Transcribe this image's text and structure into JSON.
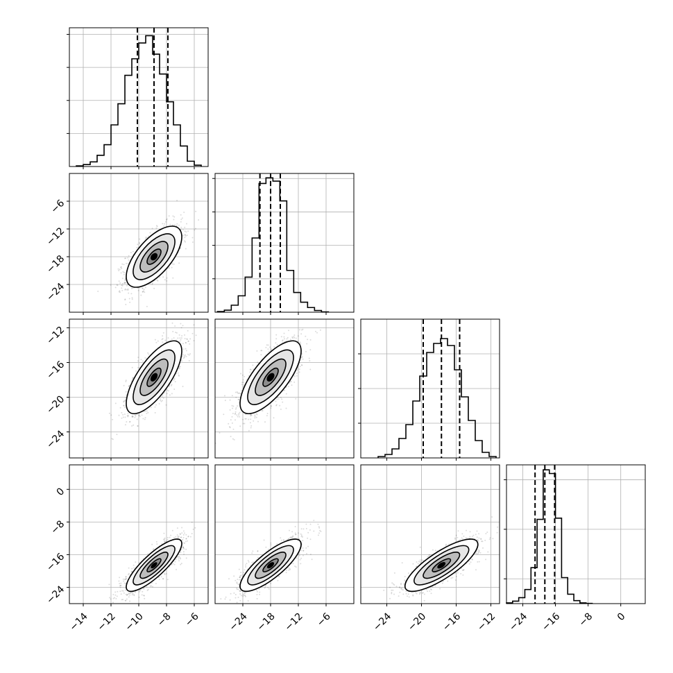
{
  "chart_data": {
    "type": "corner",
    "grid": true,
    "n_params": 4,
    "params": [
      {
        "range": [
          -15,
          -5
        ],
        "ticks": [
          -14,
          -12,
          -10,
          -8,
          -6
        ],
        "tick_labels": [
          "−14",
          "−12",
          "−10",
          "−8",
          "−6"
        ],
        "quantiles": [
          -10.1,
          -8.9,
          -7.9
        ],
        "hist": {
          "edges": [
            -14.5,
            -14.0,
            -13.5,
            -13.0,
            -12.5,
            -12.0,
            -11.5,
            -11.0,
            -10.5,
            -10.0,
            -9.5,
            -9.0,
            -8.5,
            -8.0,
            -7.5,
            -7.0,
            -6.5,
            -6.0,
            -5.5
          ],
          "counts": [
            1,
            3,
            7,
            17,
            33,
            63,
            95,
            138,
            163,
            187,
            198,
            170,
            140,
            98,
            63,
            31,
            8,
            2
          ],
          "ymax": 210,
          "yticks": [
            50,
            100,
            150,
            200
          ]
        }
      },
      {
        "range": [
          -30,
          0
        ],
        "ticks": [
          -24,
          -18,
          -12,
          -6
        ],
        "tick_labels": [
          "−24",
          "−18",
          "−12",
          "−6"
        ],
        "quantiles": [
          -20.3,
          -18.0,
          -15.9
        ],
        "hist": {
          "edges": [
            -29.5,
            -28.0,
            -26.5,
            -25.0,
            -23.5,
            -22.0,
            -20.5,
            -19.0,
            -17.5,
            -16.0,
            -14.5,
            -13.0,
            -11.5,
            -10.0,
            -8.5,
            -7.0,
            -5.5
          ],
          "counts": [
            2,
            6,
            21,
            49,
            105,
            222,
            385,
            402,
            392,
            333,
            125,
            59,
            30,
            14,
            5,
            1
          ],
          "ymax": 415,
          "yticks": [
            100,
            200,
            300,
            400
          ]
        }
      },
      {
        "range": [
          -27,
          -11
        ],
        "ticks": [
          -24,
          -20,
          -16,
          -12
        ],
        "tick_labels": [
          "−24",
          "−20",
          "−16",
          "−12"
        ],
        "quantiles": [
          -19.8,
          -17.7,
          -15.6
        ],
        "hist": {
          "edges": [
            -25.0,
            -24.2,
            -23.4,
            -22.6,
            -21.8,
            -21.0,
            -20.2,
            -19.4,
            -18.6,
            -17.8,
            -17.0,
            -16.2,
            -15.4,
            -14.6,
            -13.8,
            -13.0,
            -12.2,
            -11.4
          ],
          "counts": [
            2,
            5,
            13,
            28,
            48,
            82,
            118,
            152,
            165,
            172,
            162,
            127,
            88,
            54,
            25,
            8,
            2
          ],
          "ymax": 200,
          "yticks": [
            50,
            100,
            150
          ]
        }
      },
      {
        "range": [
          -28,
          6
        ],
        "ticks": [
          -24,
          -16,
          -8,
          0
        ],
        "tick_labels": [
          "−24",
          "−16",
          "−8",
          "0"
        ],
        "quantiles": [
          -21.0,
          -18.6,
          -16.2
        ],
        "hist": {
          "edges": [
            -28.0,
            -26.5,
            -25.0,
            -23.5,
            -22.0,
            -20.5,
            -19.0,
            -17.5,
            -16.0,
            -14.5,
            -13.0,
            -11.5,
            -10.0,
            -8.5,
            -7.0
          ],
          "counts": [
            3,
            10,
            24,
            57,
            145,
            340,
            540,
            525,
            345,
            105,
            38,
            12,
            3,
            1
          ],
          "ymax": 560,
          "yticks": [
            100,
            300,
            500
          ]
        }
      }
    ],
    "pairs": [
      {
        "row": 1,
        "col": 0,
        "mx": -8.9,
        "my": -18.0,
        "sx": 1.0,
        "sy": 3.3,
        "rho": 0.65
      },
      {
        "row": 2,
        "col": 0,
        "mx": -8.9,
        "my": -17.7,
        "sx": 1.0,
        "sy": 2.1,
        "rho": 0.72
      },
      {
        "row": 2,
        "col": 1,
        "mx": -18.0,
        "my": -17.7,
        "sx": 3.3,
        "sy": 2.1,
        "rho": 0.72
      },
      {
        "row": 3,
        "col": 0,
        "mx": -8.9,
        "my": -18.6,
        "sx": 1.0,
        "sy": 3.2,
        "rho": 0.83
      },
      {
        "row": 3,
        "col": 1,
        "mx": -18.0,
        "my": -18.6,
        "sx": 3.3,
        "sy": 3.2,
        "rho": 0.8
      },
      {
        "row": 3,
        "col": 2,
        "mx": -17.7,
        "my": -18.6,
        "sx": 2.1,
        "sy": 3.2,
        "rho": 0.8
      }
    ],
    "contour_levels_sigma": [
      0.5,
      1.0,
      1.5,
      2.0
    ]
  },
  "colors": {
    "line": "#000000",
    "grid": "#b0b0b0",
    "points": "#000000",
    "fill_levels": [
      "#ffffff",
      "#e6e6e6",
      "#bdbdbd",
      "#8c8c8c",
      "#000000"
    ]
  }
}
